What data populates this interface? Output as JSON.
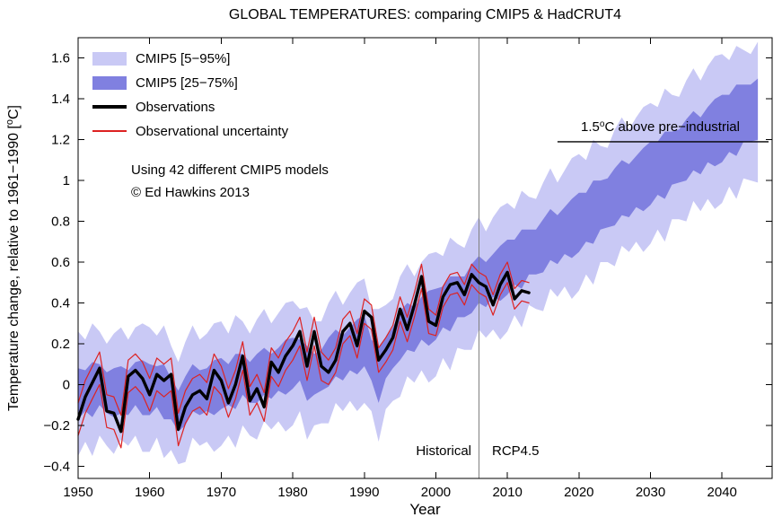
{
  "title": "GLOBAL TEMPERATURES: comparing CMIP5 & HadCRUT4",
  "axes": {
    "xlabel": "Year",
    "ylabel": {
      "prefix": "Temperature change, relative to 1961−1990 [",
      "sup": "o",
      "suffix": "C]"
    },
    "x_ticks": [
      1950,
      1960,
      1970,
      1980,
      1990,
      2000,
      2010,
      2020,
      2030,
      2040
    ],
    "x_tick_labels": [
      "1950",
      "1960",
      "1970",
      "1980",
      "1990",
      "2000",
      "2010",
      "2020",
      "2030",
      "2040"
    ],
    "y_ticks": [
      -0.4,
      -0.2,
      0,
      0.2,
      0.4,
      0.6,
      0.8,
      1.0,
      1.2,
      1.4,
      1.6
    ],
    "y_tick_labels": [
      "−0.4",
      "−0.2",
      "0",
      "0.2",
      "0.4",
      "0.6",
      "0.8",
      "1",
      "1.2",
      "1.4",
      "1.6"
    ]
  },
  "legend": {
    "items": [
      {
        "label": "CMIP5 [5−95%]",
        "swatch": "fill",
        "color": "#c9c9f5",
        "weight": 15
      },
      {
        "label": "CMIP5 [25−75%]",
        "swatch": "fill",
        "color": "#8080e0",
        "weight": 15
      },
      {
        "label": "Observations",
        "swatch": "line",
        "color": "#000000",
        "weight": 4
      },
      {
        "label": "Observational uncertainty",
        "swatch": "line",
        "color": "#dd2222",
        "weight": 2
      }
    ]
  },
  "notes": {
    "models": "Using 42 different CMIP5 models",
    "credit": "© Ed Hawkins 2013"
  },
  "annotations": {
    "historical": "Historical",
    "rcp": "RCP4.5",
    "threshold": {
      "prefix": "1.5",
      "sup": "o",
      "suffix": "C above pre−industrial"
    }
  },
  "colors": {
    "band_outer": "#c9c9f5",
    "band_inner": "#8080e0",
    "observations": "#000000",
    "uncertainty": "#dd2222",
    "divider": "#808080",
    "threshold": "#000000"
  },
  "chart_data": {
    "type": "line",
    "title": "GLOBAL TEMPERATURES: comparing CMIP5 & HadCRUT4",
    "xlabel": "Year",
    "ylabel": "Temperature change, relative to 1961-1990 [°C]",
    "xlim": [
      1950,
      2047
    ],
    "ylim": [
      -0.46,
      1.7
    ],
    "grid": false,
    "legend_position": "upper left",
    "legend": [
      "CMIP5 [5-95%]",
      "CMIP5 [25-75%]",
      "Observations",
      "Observational uncertainty"
    ],
    "divider_year": 2006,
    "threshold_line": {
      "y": 1.19,
      "x_start": 2017,
      "x_end": 2046.5,
      "label": "1.5°C above pre-industrial"
    },
    "years": [
      1950,
      1951,
      1952,
      1953,
      1954,
      1955,
      1956,
      1957,
      1958,
      1959,
      1960,
      1961,
      1962,
      1963,
      1964,
      1965,
      1966,
      1967,
      1968,
      1969,
      1970,
      1971,
      1972,
      1973,
      1974,
      1975,
      1976,
      1977,
      1978,
      1979,
      1980,
      1981,
      1982,
      1983,
      1984,
      1985,
      1986,
      1987,
      1988,
      1989,
      1990,
      1991,
      1992,
      1993,
      1994,
      1995,
      1996,
      1997,
      1998,
      1999,
      2000,
      2001,
      2002,
      2003,
      2004,
      2005,
      2006,
      2007,
      2008,
      2009,
      2010,
      2011,
      2012,
      2013,
      2014,
      2015,
      2016,
      2017,
      2018,
      2019,
      2020,
      2021,
      2022,
      2023,
      2024,
      2025,
      2026,
      2027,
      2028,
      2029,
      2030,
      2031,
      2032,
      2033,
      2034,
      2035,
      2036,
      2037,
      2038,
      2039,
      2040,
      2041,
      2042,
      2043,
      2044,
      2045
    ],
    "bands": {
      "p95": [
        0.26,
        0.22,
        0.3,
        0.26,
        0.2,
        0.25,
        0.28,
        0.22,
        0.28,
        0.3,
        0.28,
        0.24,
        0.29,
        0.19,
        0.11,
        0.21,
        0.29,
        0.22,
        0.25,
        0.3,
        0.31,
        0.25,
        0.34,
        0.31,
        0.25,
        0.32,
        0.37,
        0.3,
        0.35,
        0.4,
        0.41,
        0.37,
        0.38,
        0.31,
        0.31,
        0.4,
        0.46,
        0.39,
        0.45,
        0.5,
        0.52,
        0.37,
        0.37,
        0.39,
        0.42,
        0.53,
        0.59,
        0.53,
        0.6,
        0.64,
        0.65,
        0.63,
        0.72,
        0.69,
        0.67,
        0.76,
        0.82,
        0.75,
        0.82,
        0.87,
        0.89,
        0.86,
        0.95,
        0.92,
        0.91,
        0.99,
        1.06,
        0.99,
        1.05,
        1.11,
        1.13,
        1.1,
        1.2,
        1.17,
        1.16,
        1.25,
        1.31,
        1.25,
        1.31,
        1.36,
        1.38,
        1.36,
        1.45,
        1.42,
        1.41,
        1.49,
        1.55,
        1.49,
        1.56,
        1.61,
        1.62,
        1.59,
        1.66,
        1.64,
        1.62,
        1.68
      ],
      "p75": [
        0.08,
        0.07,
        0.11,
        0.1,
        0.06,
        0.08,
        0.09,
        0.07,
        0.11,
        0.12,
        0.1,
        0.09,
        0.1,
        0.03,
        -0.03,
        0.04,
        0.1,
        0.07,
        0.08,
        0.12,
        0.13,
        0.1,
        0.15,
        0.15,
        0.11,
        0.15,
        0.18,
        0.15,
        0.18,
        0.22,
        0.23,
        0.22,
        0.19,
        0.15,
        0.17,
        0.23,
        0.27,
        0.24,
        0.28,
        0.32,
        0.34,
        0.22,
        0.18,
        0.23,
        0.28,
        0.36,
        0.4,
        0.38,
        0.43,
        0.46,
        0.47,
        0.48,
        0.53,
        0.53,
        0.53,
        0.59,
        0.63,
        0.6,
        0.64,
        0.68,
        0.71,
        0.71,
        0.76,
        0.76,
        0.76,
        0.81,
        0.86,
        0.83,
        0.87,
        0.91,
        0.94,
        0.94,
        1.0,
        1.0,
        1.01,
        1.06,
        1.1,
        1.08,
        1.12,
        1.16,
        1.19,
        1.19,
        1.24,
        1.24,
        1.25,
        1.3,
        1.34,
        1.31,
        1.36,
        1.4,
        1.42,
        1.42,
        1.47,
        1.47,
        1.47,
        1.5
      ],
      "p25": [
        -0.17,
        -0.13,
        -0.16,
        -0.1,
        -0.14,
        -0.16,
        -0.14,
        -0.15,
        -0.1,
        -0.15,
        -0.15,
        -0.11,
        -0.17,
        -0.17,
        -0.23,
        -0.2,
        -0.13,
        -0.15,
        -0.13,
        -0.15,
        -0.12,
        -0.1,
        -0.12,
        -0.05,
        -0.09,
        -0.09,
        -0.05,
        -0.07,
        -0.03,
        -0.05,
        -0.02,
        0.02,
        -0.08,
        -0.05,
        -0.03,
        -0.01,
        0.04,
        0.02,
        0.07,
        0.05,
        0.09,
        0.02,
        -0.09,
        0.03,
        0.08,
        0.12,
        0.17,
        0.16,
        0.22,
        0.19,
        0.22,
        0.28,
        0.26,
        0.33,
        0.33,
        0.35,
        0.4,
        0.38,
        0.43,
        0.41,
        0.44,
        0.49,
        0.47,
        0.54,
        0.54,
        0.55,
        0.61,
        0.59,
        0.64,
        0.62,
        0.65,
        0.7,
        0.69,
        0.76,
        0.77,
        0.78,
        0.83,
        0.82,
        0.87,
        0.85,
        0.88,
        0.93,
        0.91,
        0.98,
        0.99,
        1.0,
        1.05,
        1.03,
        1.09,
        1.07,
        1.09,
        1.14,
        1.12,
        1.19,
        1.19,
        1.2
      ],
      "p5": [
        -0.35,
        -0.28,
        -0.35,
        -0.25,
        -0.3,
        -0.34,
        -0.27,
        -0.3,
        -0.25,
        -0.33,
        -0.33,
        -0.26,
        -0.36,
        -0.32,
        -0.39,
        -0.38,
        -0.26,
        -0.3,
        -0.28,
        -0.33,
        -0.3,
        -0.25,
        -0.31,
        -0.2,
        -0.25,
        -0.27,
        -0.18,
        -0.22,
        -0.18,
        -0.23,
        -0.2,
        -0.13,
        -0.27,
        -0.2,
        -0.19,
        -0.19,
        -0.09,
        -0.13,
        -0.08,
        -0.13,
        -0.09,
        -0.13,
        -0.28,
        -0.12,
        -0.08,
        -0.06,
        0.04,
        0.01,
        0.07,
        0.01,
        0.04,
        0.13,
        0.07,
        0.18,
        0.17,
        0.17,
        0.27,
        0.23,
        0.27,
        0.22,
        0.26,
        0.34,
        0.28,
        0.39,
        0.37,
        0.36,
        0.47,
        0.43,
        0.48,
        0.42,
        0.46,
        0.54,
        0.49,
        0.6,
        0.6,
        0.58,
        0.68,
        0.65,
        0.7,
        0.65,
        0.69,
        0.76,
        0.7,
        0.81,
        0.81,
        0.8,
        0.9,
        0.85,
        0.91,
        0.86,
        0.89,
        0.97,
        0.91,
        1.01,
        1.0,
        0.99
      ]
    },
    "observations": {
      "years_start": 1950,
      "values": [
        -0.17,
        -0.06,
        0.01,
        0.08,
        -0.13,
        -0.14,
        -0.23,
        0.04,
        0.07,
        0.03,
        -0.05,
        0.05,
        0.02,
        0.05,
        -0.22,
        -0.11,
        -0.05,
        -0.03,
        -0.07,
        0.07,
        0.02,
        -0.09,
        0.0,
        0.14,
        -0.08,
        -0.02,
        -0.11,
        0.11,
        0.06,
        0.14,
        0.19,
        0.26,
        0.09,
        0.26,
        0.09,
        0.06,
        0.12,
        0.26,
        0.3,
        0.19,
        0.36,
        0.33,
        0.12,
        0.17,
        0.23,
        0.37,
        0.27,
        0.39,
        0.53,
        0.31,
        0.29,
        0.43,
        0.49,
        0.5,
        0.44,
        0.54,
        0.5,
        0.48,
        0.39,
        0.49,
        0.55,
        0.42,
        0.46,
        0.45
      ],
      "uncertainty": [
        0.08,
        0.08,
        0.08,
        0.08,
        0.08,
        0.08,
        0.08,
        0.08,
        0.08,
        0.08,
        0.08,
        0.08,
        0.08,
        0.08,
        0.08,
        0.08,
        0.08,
        0.08,
        0.08,
        0.08,
        0.07,
        0.07,
        0.07,
        0.07,
        0.07,
        0.07,
        0.07,
        0.07,
        0.07,
        0.07,
        0.07,
        0.07,
        0.07,
        0.07,
        0.07,
        0.06,
        0.06,
        0.06,
        0.06,
        0.06,
        0.06,
        0.06,
        0.06,
        0.06,
        0.06,
        0.06,
        0.06,
        0.06,
        0.06,
        0.06,
        0.05,
        0.05,
        0.05,
        0.05,
        0.05,
        0.05,
        0.05,
        0.05,
        0.05,
        0.05,
        0.05,
        0.05,
        0.05,
        0.05
      ]
    }
  }
}
